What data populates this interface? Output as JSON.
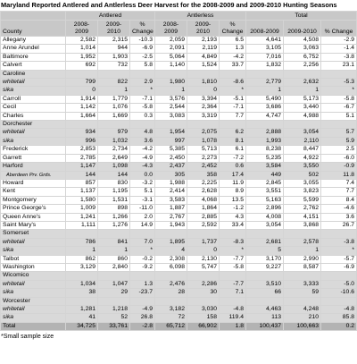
{
  "title": "Maryland Reported Antlered and Antlerless Deer Harvest for the 2008-2009 and 2009-2010 Hunting Seasons",
  "columns": {
    "county": "County",
    "groups": [
      "Antlered",
      "Antlerless",
      "Total"
    ],
    "sub": [
      "2008-2009",
      "2009-2010",
      "% Change"
    ]
  },
  "counties": [
    {
      "name": "Allegany",
      "values": [
        "2,582",
        "2,315",
        "-10.3",
        "2,059",
        "2,193",
        "6.5",
        "4,641",
        "4,508",
        "-2.9"
      ]
    },
    {
      "name": "Anne Arundel",
      "values": [
        "1,014",
        "944",
        "-6.9",
        "2,091",
        "2,119",
        "1.3",
        "3,105",
        "3,063",
        "-1.4"
      ]
    },
    {
      "name": "Baltimore",
      "values": [
        "1,952",
        "1,903",
        "-2.5",
        "5,064",
        "4,849",
        "-4.2",
        "7,016",
        "6,752",
        "-3.8"
      ]
    },
    {
      "name": "Calvert",
      "values": [
        "692",
        "732",
        "5.8",
        "1,140",
        "1,524",
        "33.7",
        "1,832",
        "2,256",
        "23.1"
      ]
    },
    {
      "name": "Caroline",
      "subrows": [
        {
          "label": "whitetail",
          "values": [
            "799",
            "822",
            "2.9",
            "1,980",
            "1,810",
            "-8.6",
            "2,779",
            "2,632",
            "-5.3"
          ]
        },
        {
          "label": "sika",
          "values": [
            "0",
            "1",
            "*",
            "1",
            "0",
            "*",
            "1",
            "1",
            "*"
          ]
        }
      ]
    },
    {
      "name": "Carroll",
      "values": [
        "1,914",
        "1,779",
        "-7.1",
        "3,576",
        "3,394",
        "-5.1",
        "5,490",
        "5,173",
        "-5.8"
      ]
    },
    {
      "name": "Cecil",
      "values": [
        "1,142",
        "1,076",
        "-5.8",
        "2,544",
        "2,364",
        "-7.1",
        "3,686",
        "3,440",
        "-6.7"
      ]
    },
    {
      "name": "Charles",
      "values": [
        "1,664",
        "1,669",
        "0.3",
        "3,083",
        "3,319",
        "7.7",
        "4,747",
        "4,988",
        "5.1"
      ]
    },
    {
      "name": "Dorchester",
      "subrows": [
        {
          "label": "whitetail",
          "values": [
            "934",
            "979",
            "4.8",
            "1,954",
            "2,075",
            "6.2",
            "2,888",
            "3,054",
            "5.7"
          ]
        },
        {
          "label": "sika",
          "values": [
            "996",
            "1,032",
            "3.6",
            "997",
            "1,078",
            "8.1",
            "1,993",
            "2,110",
            "5.9"
          ]
        }
      ]
    },
    {
      "name": "Frederick",
      "values": [
        "2,853",
        "2,734",
        "-4.2",
        "5,385",
        "5,713",
        "6.1",
        "8,238",
        "8,447",
        "2.5"
      ]
    },
    {
      "name": "Garrett",
      "values": [
        "2,785",
        "2,649",
        "-4.9",
        "2,450",
        "2,273",
        "-7.2",
        "5,235",
        "4,922",
        "-6.0"
      ]
    },
    {
      "name": "Harford",
      "values": [
        "1,147",
        "1,098",
        "-4.3",
        "2,437",
        "2,452",
        "0.6",
        "3,584",
        "3,550",
        "-0.9"
      ],
      "subrows": [
        {
          "label": "Aberdeen Prv. Grds.",
          "values": [
            "144",
            "144",
            "0.0",
            "305",
            "358",
            "17.4",
            "449",
            "502",
            "11.8"
          ]
        }
      ]
    },
    {
      "name": "Howard",
      "values": [
        "857",
        "830",
        "-3.2",
        "1,988",
        "2,225",
        "11.9",
        "2,845",
        "3,055",
        "7.4"
      ]
    },
    {
      "name": "Kent",
      "values": [
        "1,137",
        "1,195",
        "5.1",
        "2,414",
        "2,628",
        "8.9",
        "3,551",
        "3,823",
        "7.7"
      ]
    },
    {
      "name": "Montgomery",
      "values": [
        "1,580",
        "1,531",
        "-3.1",
        "3,583",
        "4,068",
        "13.5",
        "5,163",
        "5,599",
        "8.4"
      ]
    },
    {
      "name": "Prince George's",
      "values": [
        "1,009",
        "898",
        "-11.0",
        "1,887",
        "1,864",
        "-1.2",
        "2,896",
        "2,762",
        "-4.6"
      ]
    },
    {
      "name": "Queen Anne's",
      "values": [
        "1,241",
        "1,266",
        "2.0",
        "2,767",
        "2,885",
        "4.3",
        "4,008",
        "4,151",
        "3.6"
      ]
    },
    {
      "name": "Saint Mary's",
      "values": [
        "1,111",
        "1,276",
        "14.9",
        "1,943",
        "2,592",
        "33.4",
        "3,054",
        "3,868",
        "26.7"
      ]
    },
    {
      "name": "Somerset",
      "subrows": [
        {
          "label": "whitetail",
          "values": [
            "786",
            "841",
            "7.0",
            "1,895",
            "1,737",
            "-8.3",
            "2,681",
            "2,578",
            "-3.8"
          ]
        },
        {
          "label": "sika",
          "values": [
            "1",
            "1",
            "*",
            "4",
            "0",
            "*",
            "5",
            "1",
            "*"
          ]
        }
      ]
    },
    {
      "name": "Talbot",
      "values": [
        "862",
        "860",
        "-0.2",
        "2,308",
        "2,130",
        "-7.7",
        "3,170",
        "2,990",
        "-5.7"
      ]
    },
    {
      "name": "Washington",
      "values": [
        "3,129",
        "2,840",
        "-9.2",
        "6,098",
        "5,747",
        "-5.8",
        "9,227",
        "8,587",
        "-6.9"
      ]
    },
    {
      "name": "Wicomico",
      "subrows": [
        {
          "label": "whitetail",
          "values": [
            "1,034",
            "1,047",
            "1.3",
            "2,476",
            "2,286",
            "-7.7",
            "3,510",
            "3,333",
            "-5.0"
          ]
        },
        {
          "label": "sika",
          "values": [
            "38",
            "29",
            "-23.7",
            "28",
            "30",
            "7.1",
            "66",
            "59",
            "-10.6"
          ]
        }
      ]
    },
    {
      "name": "Worcester",
      "subrows": [
        {
          "label": "whitetail",
          "values": [
            "1,281",
            "1,218",
            "-4.9",
            "3,182",
            "3,030",
            "-4.8",
            "4,463",
            "4,248",
            "-4.8"
          ]
        },
        {
          "label": "sika",
          "values": [
            "41",
            "52",
            "26.8",
            "72",
            "158",
            "119.4",
            "113",
            "210",
            "85.8"
          ]
        }
      ]
    }
  ],
  "total": {
    "label": "Total",
    "values": [
      "34,725",
      "33,761",
      "-2.8",
      "65,712",
      "66,902",
      "1.8",
      "100,437",
      "100,663",
      "0.2"
    ]
  },
  "footnote": "*Small sample size"
}
